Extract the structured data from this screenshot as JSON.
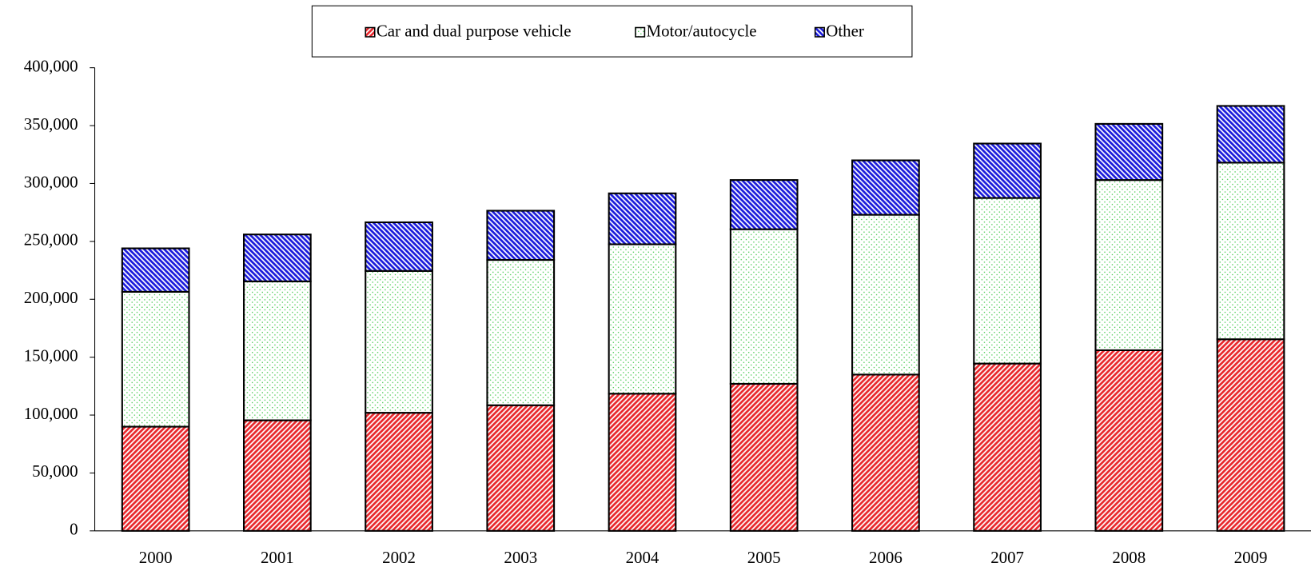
{
  "chart_data": {
    "type": "stacked_bar",
    "categories": [
      "2000",
      "2001",
      "2002",
      "2003",
      "2004",
      "2005",
      "2006",
      "2007",
      "2008",
      "2009"
    ],
    "series": [
      {
        "name": "Car and dual purpose vehicle",
        "color": "#e8262b",
        "values": [
          90000,
          95500,
          102000,
          108500,
          118500,
          127000,
          135000,
          144500,
          156000,
          165500
        ]
      },
      {
        "name": "Motor/autocycle",
        "color": "#2fc33a",
        "values": [
          116500,
          120000,
          122500,
          125500,
          129000,
          133500,
          138000,
          143000,
          147000,
          152500
        ]
      },
      {
        "name": "Other",
        "color": "#1a1adb",
        "values": [
          37500,
          40500,
          42000,
          42500,
          44000,
          42500,
          47000,
          47000,
          48500,
          49000
        ]
      }
    ],
    "ylim": [
      0,
      400000
    ],
    "yticks": [
      0,
      {
        "value": 50000,
        "label": "50,000"
      },
      {
        "value": 100000,
        "label": "100,000"
      },
      {
        "value": 150000,
        "label": "150,000"
      },
      {
        "value": 200000,
        "label": "200,000"
      },
      {
        "value": 250000,
        "label": "250,000"
      },
      {
        "value": 300000,
        "label": "300,000"
      },
      {
        "value": 350000,
        "label": "350,000"
      },
      {
        "value": 400000,
        "label": "400,000"
      }
    ],
    "legend": "top"
  }
}
